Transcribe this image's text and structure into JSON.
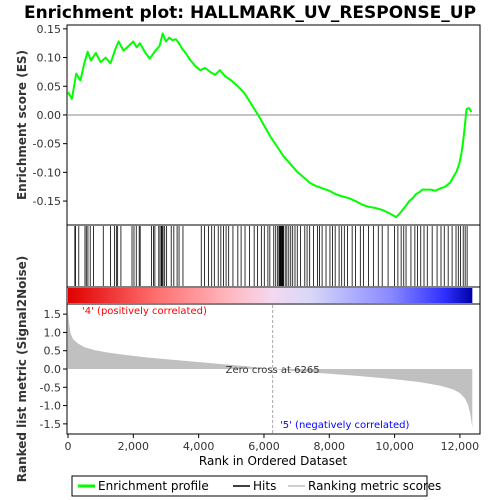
{
  "chart_data": {
    "type": "line",
    "title": "Enrichment plot: HALLMARK_UV_RESPONSE_UP",
    "xlabel": "Rank in Ordered Dataset",
    "ylabel_top": "Enrichment score (ES)",
    "ylabel_bottom": "Ranked list metric (Signal2Noise)",
    "xlim": [
      0,
      12400
    ],
    "x_ticks": [
      0,
      2000,
      4000,
      6000,
      8000,
      10000,
      12000
    ],
    "x_tick_labels": [
      "0",
      "2,000",
      "4,000",
      "6,000",
      "8,000",
      "10,000",
      "12,000"
    ],
    "es_ylim": [
      -0.19,
      0.155
    ],
    "es_ticks": [
      0.15,
      0.1,
      0.05,
      0.0,
      -0.05,
      -0.1,
      -0.15
    ],
    "es_tick_labels": [
      "0.15",
      "0.10",
      "0.05",
      "0.00",
      "-0.05",
      "-0.10",
      "-0.15"
    ],
    "metric_ylim": [
      -1.75,
      1.75
    ],
    "metric_ticks": [
      1.5,
      1.0,
      0.5,
      0.0,
      -0.5,
      -1.0,
      -1.5
    ],
    "metric_tick_labels": [
      "1.5",
      "1.0",
      "0.5",
      "0.0",
      "-0.5",
      "-1.0",
      "-1.5"
    ],
    "grid": false,
    "legend_placement": "bottom",
    "colors": {
      "es_line": "#00ff00",
      "hits": "#000000",
      "metric_fill": "#c0c0c0",
      "pos_label": "#ff0000",
      "neg_label": "#0000ff",
      "zero_line": "#888888"
    },
    "enrichment_profile": {
      "name": "Enrichment profile",
      "x": [
        0,
        120,
        250,
        380,
        500,
        600,
        700,
        850,
        1000,
        1150,
        1300,
        1450,
        1550,
        1700,
        1850,
        2000,
        2100,
        2200,
        2350,
        2500,
        2650,
        2800,
        2900,
        3000,
        3100,
        3200,
        3300,
        3400,
        3500,
        3600,
        3750,
        3900,
        4050,
        4200,
        4350,
        4500,
        4650,
        4800,
        5000,
        5200,
        5400,
        5600,
        5800,
        6000,
        6200,
        6400,
        6600,
        6800,
        7000,
        7200,
        7400,
        7600,
        7800,
        8000,
        8200,
        8400,
        8600,
        8800,
        9000,
        9200,
        9400,
        9600,
        9800,
        9950,
        10050,
        10150,
        10250,
        10350,
        10450,
        10550,
        10650,
        10750,
        10850,
        10950,
        11100,
        11250,
        11400,
        11550,
        11700,
        11800,
        11900,
        11980,
        12050,
        12100,
        12150,
        12200,
        12280,
        12350
      ],
      "y": [
        0.04,
        0.028,
        0.072,
        0.06,
        0.09,
        0.11,
        0.095,
        0.108,
        0.092,
        0.1,
        0.09,
        0.115,
        0.128,
        0.112,
        0.12,
        0.128,
        0.118,
        0.125,
        0.11,
        0.098,
        0.11,
        0.12,
        0.142,
        0.128,
        0.135,
        0.13,
        0.132,
        0.125,
        0.115,
        0.108,
        0.095,
        0.085,
        0.078,
        0.082,
        0.075,
        0.07,
        0.078,
        0.068,
        0.06,
        0.05,
        0.038,
        0.02,
        0.002,
        -0.018,
        -0.038,
        -0.055,
        -0.072,
        -0.085,
        -0.098,
        -0.108,
        -0.118,
        -0.124,
        -0.128,
        -0.132,
        -0.138,
        -0.142,
        -0.145,
        -0.15,
        -0.156,
        -0.16,
        -0.162,
        -0.165,
        -0.17,
        -0.175,
        -0.178,
        -0.172,
        -0.165,
        -0.158,
        -0.15,
        -0.145,
        -0.138,
        -0.135,
        -0.13,
        -0.13,
        -0.13,
        -0.132,
        -0.128,
        -0.125,
        -0.118,
        -0.108,
        -0.098,
        -0.085,
        -0.065,
        -0.045,
        -0.02,
        0.01,
        0.012,
        0.005
      ]
    },
    "hits_label": "Hits",
    "hit_positions": [
      210,
      230,
      330,
      520,
      560,
      610,
      680,
      780,
      1080,
      1300,
      1420,
      1480,
      1520,
      1620,
      1960,
      2020,
      2090,
      2180,
      2210,
      2560,
      2620,
      2660,
      2780,
      2820,
      2860,
      2880,
      2910,
      2960,
      3020,
      3160,
      3240,
      3340,
      3400,
      3520,
      4080,
      4180,
      4300,
      4400,
      4480,
      4600,
      4680,
      4760,
      4840,
      4920,
      5050,
      5200,
      5300,
      5420,
      5560,
      5700,
      5800,
      5920,
      6010,
      6120,
      6180,
      6300,
      6360,
      6420,
      6460,
      6480,
      6500,
      6520,
      6540,
      6560,
      6580,
      6600,
      6650,
      6700,
      6760,
      6820,
      6880,
      6950,
      7020,
      7120,
      7250,
      7320,
      7400,
      7520,
      7640,
      7700,
      7780,
      7900,
      8020,
      8100,
      8180,
      8300,
      8380,
      8460,
      8560,
      8700,
      8800,
      8950,
      9050,
      9200,
      9350,
      9500,
      9620,
      9800,
      10000,
      10100,
      10200,
      10280,
      10350,
      10500,
      10620,
      10700,
      10800,
      10900,
      11000,
      11150,
      11300,
      11420,
      11520,
      11640,
      11760,
      11880,
      11950,
      12020,
      12100,
      12160,
      12220
    ],
    "metric_label": "Ranking metric scores",
    "metric_curve": {
      "x": [
        0,
        30,
        80,
        150,
        300,
        500,
        800,
        1200,
        1800,
        2500,
        3500,
        4500,
        5500,
        6265,
        7000,
        8000,
        9000,
        10000,
        10800,
        11400,
        11800,
        12000,
        12150,
        12250,
        12320,
        12380
      ],
      "y": [
        1.6,
        1.25,
        0.98,
        0.82,
        0.7,
        0.6,
        0.52,
        0.45,
        0.38,
        0.31,
        0.23,
        0.15,
        0.07,
        0.0,
        -0.06,
        -0.13,
        -0.2,
        -0.28,
        -0.36,
        -0.46,
        -0.56,
        -0.66,
        -0.8,
        -0.98,
        -1.25,
        -1.6
      ]
    },
    "zero_cross_rank": 6265,
    "zero_cross_label": "Zero cross at 6265",
    "pos_label": "'4' (positively correlated)",
    "neg_label": "'5' (negatively correlated)"
  }
}
